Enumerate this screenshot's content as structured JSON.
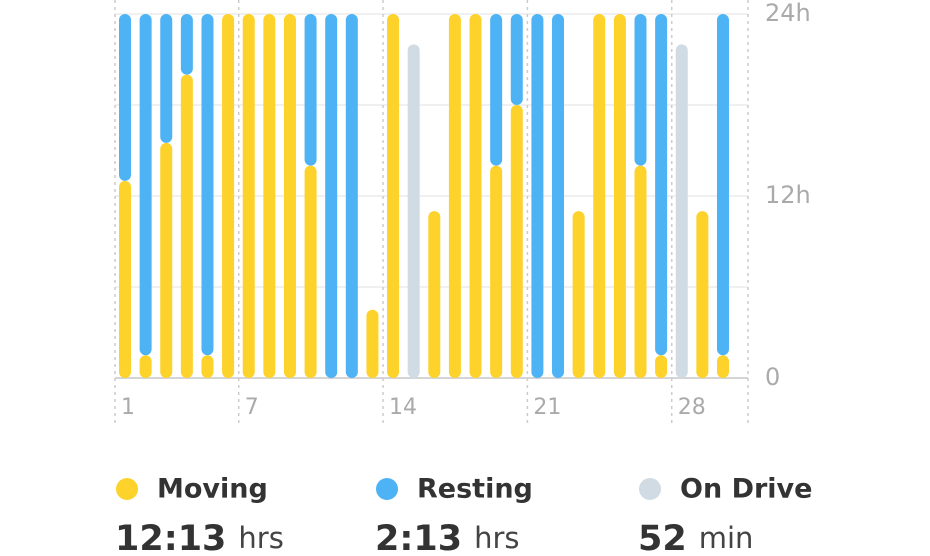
{
  "chart_data": {
    "type": "stacked-bar",
    "categories": [
      "1",
      null,
      null,
      null,
      null,
      null,
      "7",
      null,
      null,
      null,
      null,
      null,
      null,
      "14",
      null,
      null,
      null,
      null,
      null,
      null,
      "21",
      null,
      null,
      null,
      null,
      null,
      null,
      "28",
      null,
      null
    ],
    "series": [
      {
        "name": "Moving",
        "color": "#fdd22a",
        "total": "12:13",
        "unit": "hrs",
        "values": [
          13,
          1.5,
          15.5,
          20,
          1.5,
          24,
          24,
          24,
          24,
          14,
          0,
          0,
          4.5,
          24,
          0,
          11,
          24,
          24,
          14,
          18,
          0,
          0,
          11,
          24,
          24,
          14,
          1.5,
          0,
          11,
          1.5
        ]
      },
      {
        "name": "Resting",
        "color": "#4db3f4",
        "total": "2:13",
        "unit": "hrs",
        "values": [
          11,
          22.5,
          8.5,
          4,
          22.5,
          0,
          0,
          0,
          0,
          10,
          24,
          24,
          0,
          0,
          0,
          0,
          0,
          0,
          10,
          6,
          24,
          24,
          0,
          0,
          0,
          10,
          22.5,
          0,
          0,
          22.5
        ]
      },
      {
        "name": "On Drive",
        "color": "#d0dbe3",
        "total": "52",
        "unit": "min",
        "values": [
          0,
          0,
          0,
          0,
          0,
          0,
          0,
          0,
          0,
          0,
          0,
          0,
          0,
          0,
          22,
          0,
          0,
          0,
          0,
          0,
          0,
          0,
          0,
          0,
          0,
          0,
          0,
          22,
          0,
          0
        ]
      }
    ],
    "ylim": [
      0,
      24
    ],
    "yticks": [
      0,
      {
        "value": 12,
        "label": "12h"
      },
      {
        "value": 24,
        "label": "24h"
      }
    ],
    "grid": true
  }
}
